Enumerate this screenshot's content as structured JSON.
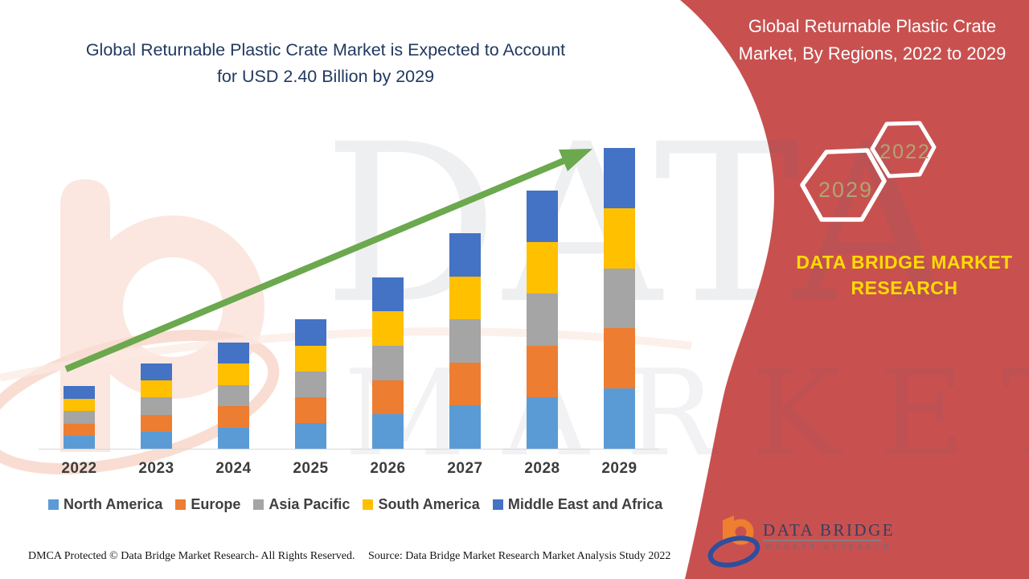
{
  "main_title": {
    "line1": "Global Returnable Plastic Crate Market is Expected to Account",
    "line2": "for USD 2.40 Billion by 2029"
  },
  "panel": {
    "bg_color": "#C85150",
    "title_line1": "Global Returnable Plastic Crate",
    "title_line2": "Market, By Regions, 2022 to 2029",
    "hexagon_left_label": "2029",
    "hexagon_right_label": "2022",
    "brand_line1": "DATA BRIDGE MARKET",
    "brand_line2": "RESEARCH"
  },
  "watermark": {
    "row1": "DATA BRIDGE",
    "row2": "MARKET RESEARCH"
  },
  "logo": {
    "title": "DATA BRIDGE",
    "subtitle": "MARKET RESEARCH"
  },
  "footer": {
    "dmca": "DMCA Protected © Data Bridge Market Research- All Rights Reserved.",
    "source": "Source: Data Bridge Market Research Market Analysis Study 2022"
  },
  "chart_data": {
    "type": "bar",
    "stacked": true,
    "title": "Global Returnable Plastic Crate Market, By Regions, 2022 to 2029",
    "unit": "USD Billion",
    "categories": [
      "2022",
      "2023",
      "2024",
      "2025",
      "2026",
      "2027",
      "2028",
      "2029"
    ],
    "totals": [
      0.5,
      0.68,
      0.85,
      1.03,
      1.37,
      1.72,
      2.06,
      2.4
    ],
    "series": [
      {
        "name": "North America",
        "color": "#5B9BD5",
        "values": [
          0.1,
          0.136,
          0.17,
          0.206,
          0.274,
          0.344,
          0.412,
          0.48
        ]
      },
      {
        "name": "Europe",
        "color": "#ED7D31",
        "values": [
          0.1,
          0.136,
          0.17,
          0.206,
          0.274,
          0.344,
          0.412,
          0.48
        ]
      },
      {
        "name": "Asia Pacific",
        "color": "#A5A5A5",
        "values": [
          0.1,
          0.136,
          0.17,
          0.206,
          0.274,
          0.344,
          0.412,
          0.48
        ]
      },
      {
        "name": "South America",
        "color": "#FFC000",
        "values": [
          0.1,
          0.136,
          0.17,
          0.206,
          0.274,
          0.344,
          0.412,
          0.48
        ]
      },
      {
        "name": "Middle East and Africa",
        "color": "#4472C4",
        "values": [
          0.1,
          0.136,
          0.17,
          0.206,
          0.274,
          0.344,
          0.412,
          0.48
        ]
      }
    ],
    "xlabel": "",
    "ylabel": "",
    "ylim": [
      0,
      2.6
    ],
    "gridlines": false,
    "legend_position": "bottom",
    "annotations": [
      "upward green trend arrow from 2022 to 2029"
    ],
    "trend_arrow_color": "#6BA84E"
  }
}
